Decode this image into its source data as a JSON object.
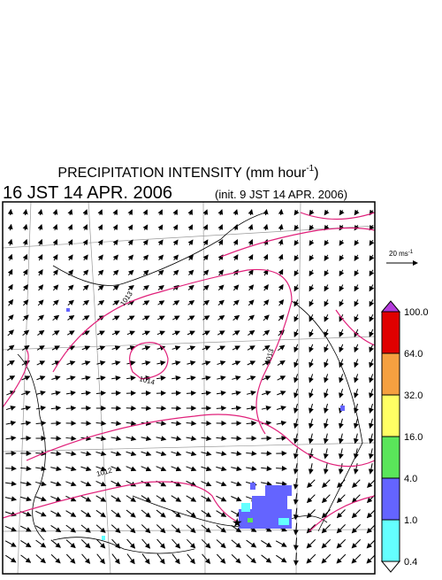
{
  "title": {
    "text": "PRECIPITATION INTENSITY (mm hour",
    "superscript": "-1",
    "close": ")"
  },
  "valid_time": "16 JST 14 APR. 2006",
  "init_time": "(init. 9 JST 14 APR. 2006)",
  "wind_scale": {
    "text": "20 ms",
    "superscript": "-1"
  },
  "isobar_labels": [
    "1013",
    "1014",
    "1013",
    "1012"
  ],
  "colorbar": {
    "over_color": "#b43cdc",
    "under_color": "#ffffff",
    "levels": [
      {
        "label": "100.0",
        "color": "#e00000"
      },
      {
        "label": "64.0",
        "color": "#f5a040"
      },
      {
        "label": "32.0",
        "color": "#ffff64"
      },
      {
        "label": "16.0",
        "color": "#5ae65a"
      },
      {
        "label": "4.0",
        "color": "#6464ff"
      },
      {
        "label": "1.0",
        "color": "#64ffff"
      },
      {
        "label": "0.4"
      }
    ]
  }
}
